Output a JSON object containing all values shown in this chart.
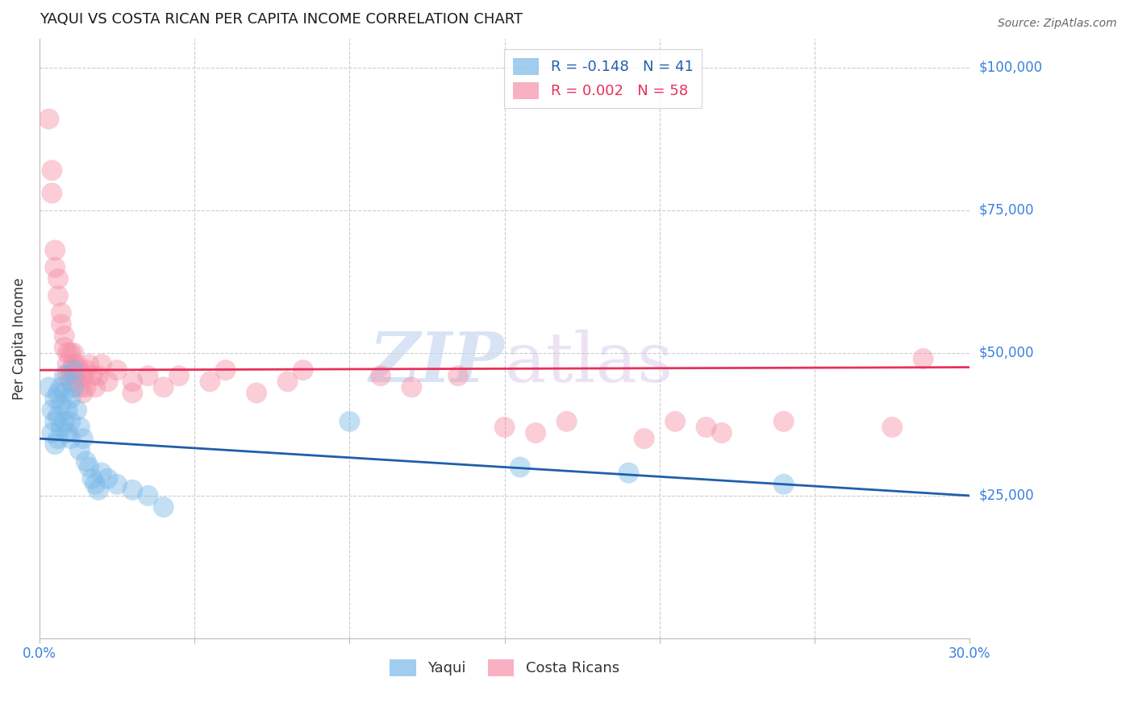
{
  "title": "YAQUI VS COSTA RICAN PER CAPITA INCOME CORRELATION CHART",
  "source": "Source: ZipAtlas.com",
  "ylabel": "Per Capita Income",
  "watermark_zip": "ZIP",
  "watermark_atlas": "atlas",
  "xlim": [
    0.0,
    0.3
  ],
  "ylim": [
    0,
    105000
  ],
  "ytick_vals": [
    25000,
    50000,
    75000,
    100000
  ],
  "ytick_labels": [
    "$25,000",
    "$50,000",
    "$75,000",
    "$100,000"
  ],
  "xtick_vals": [
    0.0,
    0.05,
    0.1,
    0.15,
    0.2,
    0.25,
    0.3
  ],
  "xtick_labels": [
    "0.0%",
    "",
    "",
    "",
    "",
    "",
    "30.0%"
  ],
  "background_color": "#ffffff",
  "grid_color": "#cccccc",
  "yaqui_color": "#7ab8e8",
  "costarican_color": "#f590a8",
  "yaqui_line_color": "#1f5faa",
  "costarican_line_color": "#e8305a",
  "title_color": "#1a1a1a",
  "ylabel_color": "#333333",
  "ytick_label_color": "#3a80e0",
  "xtick_label_color": "#3a80e0",
  "yaqui_points_x": [
    0.003,
    0.004,
    0.004,
    0.005,
    0.005,
    0.005,
    0.006,
    0.006,
    0.006,
    0.007,
    0.007,
    0.007,
    0.008,
    0.008,
    0.008,
    0.009,
    0.009,
    0.01,
    0.01,
    0.01,
    0.011,
    0.011,
    0.012,
    0.013,
    0.013,
    0.014,
    0.015,
    0.016,
    0.017,
    0.018,
    0.019,
    0.02,
    0.022,
    0.025,
    0.03,
    0.035,
    0.04,
    0.1,
    0.155,
    0.19,
    0.24
  ],
  "yaqui_points_y": [
    44000,
    40000,
    36000,
    42000,
    38000,
    34000,
    43000,
    39000,
    35000,
    44000,
    41000,
    37000,
    46000,
    43000,
    38000,
    40000,
    36000,
    42000,
    38000,
    35000,
    44000,
    47000,
    40000,
    37000,
    33000,
    35000,
    31000,
    30000,
    28000,
    27000,
    26000,
    29000,
    28000,
    27000,
    26000,
    25000,
    23000,
    38000,
    30000,
    29000,
    27000
  ],
  "costarican_points_x": [
    0.003,
    0.004,
    0.004,
    0.005,
    0.005,
    0.006,
    0.006,
    0.007,
    0.007,
    0.008,
    0.008,
    0.009,
    0.009,
    0.009,
    0.01,
    0.01,
    0.01,
    0.011,
    0.011,
    0.011,
    0.012,
    0.012,
    0.013,
    0.013,
    0.014,
    0.014,
    0.015,
    0.015,
    0.016,
    0.017,
    0.018,
    0.019,
    0.02,
    0.022,
    0.025,
    0.03,
    0.03,
    0.035,
    0.04,
    0.045,
    0.055,
    0.06,
    0.07,
    0.08,
    0.085,
    0.11,
    0.12,
    0.135,
    0.15,
    0.16,
    0.17,
    0.195,
    0.205,
    0.215,
    0.22,
    0.24,
    0.275,
    0.285
  ],
  "costarican_points_y": [
    91000,
    82000,
    78000,
    68000,
    65000,
    63000,
    60000,
    57000,
    55000,
    53000,
    51000,
    50000,
    48000,
    46000,
    50000,
    47000,
    45000,
    50000,
    48000,
    46000,
    48000,
    45000,
    47000,
    44000,
    46000,
    43000,
    47000,
    44000,
    48000,
    46000,
    44000,
    46000,
    48000,
    45000,
    47000,
    45000,
    43000,
    46000,
    44000,
    46000,
    45000,
    47000,
    43000,
    45000,
    47000,
    46000,
    44000,
    46000,
    37000,
    36000,
    38000,
    35000,
    38000,
    37000,
    36000,
    38000,
    37000,
    49000
  ],
  "yaqui_trend_x": [
    0.0,
    0.3
  ],
  "yaqui_trend_y": [
    35000,
    25000
  ],
  "costarican_trend_x": [
    0.0,
    0.3
  ],
  "costarican_trend_y": [
    47000,
    47500
  ],
  "legend_top_label1": "R = -0.148   N = 41",
  "legend_top_label2": "R = 0.002   N = 58",
  "legend_bottom_label1": "Yaqui",
  "legend_bottom_label2": "Costa Ricans"
}
